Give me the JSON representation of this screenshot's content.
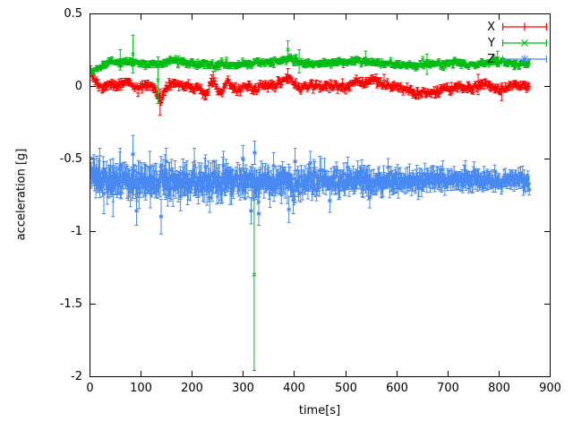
{
  "colors": {
    "background": "#ffffff",
    "axis": "#000000"
  },
  "chart_data": {
    "type": "scatter",
    "error_bars": true,
    "title": "",
    "xlabel": "time[s]",
    "ylabel": "acceleration [g]",
    "xlim": [
      0,
      900
    ],
    "ylim": [
      -2,
      0.5
    ],
    "grid": false,
    "legend_position": "top-right",
    "axis_color": "#000000",
    "x_ticks": {
      "values": [
        0,
        100,
        200,
        300,
        400,
        500,
        600,
        700,
        800,
        900
      ],
      "labels": [
        "0",
        "100",
        "200",
        "300",
        "400",
        "500",
        "600",
        "700",
        "800",
        "900"
      ]
    },
    "y_ticks": {
      "values": [
        0.5,
        0,
        -0.5,
        -1,
        -1.5,
        -2
      ],
      "labels": [
        "0.5",
        "0",
        "-0.5",
        "-1",
        "-1.5",
        "-2"
      ]
    },
    "series": [
      {
        "name": "X",
        "color": "#ff0000",
        "marker": "plus",
        "style": "errorbars",
        "t_start": 2,
        "t_end": 860,
        "dt": 1.6,
        "noise_sd": 0.012,
        "err_mean": 0.02,
        "baseline": [
          [
            2,
            0.1
          ],
          [
            6,
            0.07
          ],
          [
            12,
            0.03
          ],
          [
            18,
            0.01
          ],
          [
            25,
            -0.01
          ],
          [
            35,
            0
          ],
          [
            45,
            0.01
          ],
          [
            55,
            -0.01
          ],
          [
            65,
            0.02
          ],
          [
            75,
            0.03
          ],
          [
            85,
            0
          ],
          [
            95,
            -0.02
          ],
          [
            105,
            0
          ],
          [
            115,
            0.01
          ],
          [
            125,
            -0.02
          ],
          [
            133,
            -0.06
          ],
          [
            140,
            -0.1
          ],
          [
            147,
            -0.04
          ],
          [
            155,
            0
          ],
          [
            165,
            0.02
          ],
          [
            175,
            0.01
          ],
          [
            185,
            -0.01
          ],
          [
            195,
            0
          ],
          [
            205,
            -0.02
          ],
          [
            215,
            -0.01
          ],
          [
            222,
            -0.05
          ],
          [
            230,
            -0.06
          ],
          [
            237,
            0.02
          ],
          [
            244,
            0.04
          ],
          [
            251,
            -0.03
          ],
          [
            258,
            -0.05
          ],
          [
            265,
            0.01
          ],
          [
            272,
            0.03
          ],
          [
            280,
            -0.02
          ],
          [
            290,
            -0.03
          ],
          [
            300,
            -0.01
          ],
          [
            310,
            0.01
          ],
          [
            318,
            -0.02
          ],
          [
            326,
            -0.03
          ],
          [
            334,
            0
          ],
          [
            342,
            0.01
          ],
          [
            352,
            0
          ],
          [
            362,
            0.01
          ],
          [
            372,
            0.02
          ],
          [
            382,
            0.05
          ],
          [
            390,
            0.06
          ],
          [
            398,
            0.03
          ],
          [
            406,
            -0.01
          ],
          [
            415,
            -0.02
          ],
          [
            425,
            0
          ],
          [
            435,
            0.01
          ],
          [
            445,
            0
          ],
          [
            455,
            -0.01
          ],
          [
            465,
            0
          ],
          [
            475,
            0.01
          ],
          [
            485,
            0
          ],
          [
            495,
            -0.01
          ],
          [
            505,
            0
          ],
          [
            515,
            0.02
          ],
          [
            525,
            0.03
          ],
          [
            535,
            0.02
          ],
          [
            545,
            0.03
          ],
          [
            555,
            0.04
          ],
          [
            565,
            0.03
          ],
          [
            575,
            0.01
          ],
          [
            585,
            0
          ],
          [
            595,
            0
          ],
          [
            605,
            -0.01
          ],
          [
            615,
            -0.02
          ],
          [
            625,
            -0.03
          ],
          [
            635,
            -0.05
          ],
          [
            645,
            -0.05
          ],
          [
            655,
            -0.04
          ],
          [
            665,
            -0.05
          ],
          [
            675,
            -0.04
          ],
          [
            685,
            -0.03
          ],
          [
            695,
            -0.02
          ],
          [
            705,
            -0.02
          ],
          [
            715,
            -0.01
          ],
          [
            725,
            0
          ],
          [
            735,
            -0.01
          ],
          [
            745,
            -0.02
          ],
          [
            755,
            -0.01
          ],
          [
            765,
            0.01
          ],
          [
            775,
            0.02
          ],
          [
            785,
            0
          ],
          [
            795,
            -0.02
          ],
          [
            805,
            -0.03
          ],
          [
            815,
            -0.01
          ],
          [
            825,
            0
          ],
          [
            835,
            0.01
          ],
          [
            845,
            0
          ],
          [
            858,
            -0.01
          ]
        ],
        "outliers": [
          [
            138,
            -0.11,
            0.09
          ],
          [
            242,
            0.05,
            0.05
          ],
          [
            388,
            0.07,
            0.05
          ],
          [
            576,
            0.04,
            0.04
          ],
          [
            760,
            0.01,
            0.07
          ],
          [
            806,
            -0.04,
            0.06
          ]
        ]
      },
      {
        "name": "Y",
        "color": "#00bb11",
        "marker": "cross",
        "style": "errorbars",
        "t_start": 2,
        "t_end": 860,
        "dt": 1.6,
        "noise_sd": 0.01,
        "err_mean": 0.016,
        "baseline": [
          [
            2,
            0.1
          ],
          [
            8,
            0.1
          ],
          [
            15,
            0.12
          ],
          [
            25,
            0.14
          ],
          [
            35,
            0.16
          ],
          [
            50,
            0.17
          ],
          [
            65,
            0.16
          ],
          [
            80,
            0.17
          ],
          [
            95,
            0.16
          ],
          [
            110,
            0.15
          ],
          [
            125,
            0.15
          ],
          [
            140,
            0.16
          ],
          [
            155,
            0.17
          ],
          [
            170,
            0.17
          ],
          [
            185,
            0.16
          ],
          [
            200,
            0.16
          ],
          [
            215,
            0.15
          ],
          [
            230,
            0.15
          ],
          [
            245,
            0.14
          ],
          [
            260,
            0.15
          ],
          [
            275,
            0.14
          ],
          [
            290,
            0.15
          ],
          [
            305,
            0.15
          ],
          [
            320,
            0.16
          ],
          [
            335,
            0.17
          ],
          [
            350,
            0.16
          ],
          [
            365,
            0.17
          ],
          [
            380,
            0.18
          ],
          [
            392,
            0.19
          ],
          [
            404,
            0.17
          ],
          [
            416,
            0.16
          ],
          [
            430,
            0.15
          ],
          [
            445,
            0.15
          ],
          [
            460,
            0.16
          ],
          [
            475,
            0.16
          ],
          [
            490,
            0.16
          ],
          [
            505,
            0.16
          ],
          [
            520,
            0.17
          ],
          [
            535,
            0.17
          ],
          [
            550,
            0.16
          ],
          [
            565,
            0.16
          ],
          [
            580,
            0.15
          ],
          [
            595,
            0.15
          ],
          [
            610,
            0.15
          ],
          [
            625,
            0.14
          ],
          [
            640,
            0.14
          ],
          [
            655,
            0.15
          ],
          [
            670,
            0.15
          ],
          [
            685,
            0.15
          ],
          [
            700,
            0.16
          ],
          [
            715,
            0.16
          ],
          [
            730,
            0.15
          ],
          [
            745,
            0.15
          ],
          [
            760,
            0.15
          ],
          [
            775,
            0.16
          ],
          [
            790,
            0.17
          ],
          [
            805,
            0.17
          ],
          [
            820,
            0.16
          ],
          [
            835,
            0.15
          ],
          [
            850,
            0.16
          ],
          [
            860,
            0.16
          ]
        ],
        "outliers": [
          [
            60,
            0.18,
            0.07
          ],
          [
            85,
            0.22,
            0.13
          ],
          [
            134,
            0.04,
            0.16
          ],
          [
            322,
            -1.3,
            0.66
          ],
          [
            388,
            0.25,
            0.06
          ],
          [
            410,
            0.17,
            0.08
          ],
          [
            540,
            0.19,
            0.05
          ],
          [
            660,
            0.15,
            0.07
          ],
          [
            798,
            0.19,
            0.05
          ]
        ]
      },
      {
        "name": "Z",
        "color": "#4789f0",
        "marker": "asterisk",
        "style": "errorbars",
        "t_start": 2,
        "t_end": 860,
        "dt": 1.3,
        "noise_sd": 0.034,
        "err_mean": 0.075,
        "spread": [
          [
            2,
            1.1
          ],
          [
            150,
            1.15
          ],
          [
            300,
            1.05
          ],
          [
            450,
            0.95
          ],
          [
            600,
            0.8
          ],
          [
            750,
            0.7
          ],
          [
            860,
            0.65
          ]
        ],
        "baseline": [
          [
            2,
            -0.62
          ],
          [
            15,
            -0.64
          ],
          [
            30,
            -0.65
          ],
          [
            50,
            -0.66
          ],
          [
            70,
            -0.64
          ],
          [
            90,
            -0.66
          ],
          [
            110,
            -0.66
          ],
          [
            130,
            -0.67
          ],
          [
            150,
            -0.65
          ],
          [
            170,
            -0.66
          ],
          [
            190,
            -0.65
          ],
          [
            210,
            -0.66
          ],
          [
            230,
            -0.65
          ],
          [
            250,
            -0.66
          ],
          [
            270,
            -0.66
          ],
          [
            290,
            -0.65
          ],
          [
            310,
            -0.66
          ],
          [
            330,
            -0.66
          ],
          [
            350,
            -0.65
          ],
          [
            370,
            -0.66
          ],
          [
            390,
            -0.67
          ],
          [
            410,
            -0.66
          ],
          [
            430,
            -0.65
          ],
          [
            450,
            -0.66
          ],
          [
            470,
            -0.66
          ],
          [
            490,
            -0.65
          ],
          [
            510,
            -0.66
          ],
          [
            530,
            -0.65
          ],
          [
            550,
            -0.66
          ],
          [
            570,
            -0.66
          ],
          [
            590,
            -0.66
          ],
          [
            610,
            -0.65
          ],
          [
            630,
            -0.65
          ],
          [
            650,
            -0.66
          ],
          [
            670,
            -0.65
          ],
          [
            690,
            -0.65
          ],
          [
            710,
            -0.64
          ],
          [
            730,
            -0.65
          ],
          [
            750,
            -0.65
          ],
          [
            770,
            -0.65
          ],
          [
            790,
            -0.65
          ],
          [
            810,
            -0.65
          ],
          [
            830,
            -0.64
          ],
          [
            850,
            -0.65
          ],
          [
            860,
            -0.65
          ]
        ],
        "outliers": [
          [
            20,
            -0.6,
            0.17
          ],
          [
            28,
            -0.74,
            0.14
          ],
          [
            46,
            -0.7,
            0.2
          ],
          [
            60,
            -0.55,
            0.12
          ],
          [
            85,
            -0.47,
            0.13
          ],
          [
            92,
            -0.86,
            0.1
          ],
          [
            118,
            -0.56,
            0.11
          ],
          [
            140,
            -0.9,
            0.12
          ],
          [
            150,
            -0.52,
            0.09
          ],
          [
            178,
            -0.76,
            0.1
          ],
          [
            205,
            -0.55,
            0.12
          ],
          [
            235,
            -0.77,
            0.1
          ],
          [
            262,
            -0.55,
            0.1
          ],
          [
            300,
            -0.5,
            0.09
          ],
          [
            316,
            -0.86,
            0.09
          ],
          [
            323,
            -0.46,
            0.08
          ],
          [
            331,
            -0.88,
            0.08
          ],
          [
            360,
            -0.55,
            0.09
          ],
          [
            390,
            -0.85,
            0.09
          ],
          [
            402,
            -0.52,
            0.09
          ],
          [
            432,
            -0.53,
            0.08
          ],
          [
            470,
            -0.79,
            0.08
          ],
          [
            505,
            -0.56,
            0.07
          ],
          [
            548,
            -0.77,
            0.07
          ],
          [
            584,
            -0.56,
            0.06
          ]
        ]
      }
    ]
  }
}
